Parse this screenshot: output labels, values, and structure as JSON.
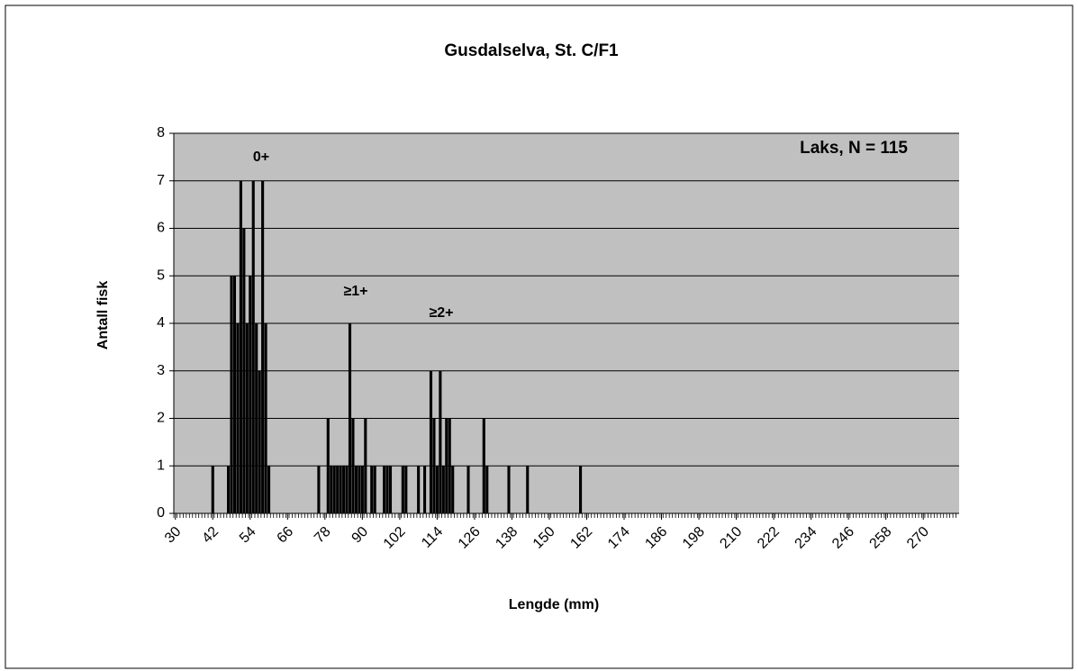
{
  "chart_data": {
    "type": "bar",
    "title": "Gusdalselva, St. C/F1",
    "x_label": "Lengde (mm)",
    "y_label": "Antall fisk",
    "annotations": [
      "0+",
      "≥1+",
      "≥2+",
      "Laks, N = 115"
    ],
    "x": [
      42,
      47,
      48,
      49,
      50,
      51,
      52,
      53,
      54,
      55,
      56,
      57,
      58,
      59,
      60,
      76,
      79,
      80,
      81,
      82,
      83,
      84,
      85,
      86,
      87,
      88,
      89,
      90,
      91,
      93,
      94,
      97,
      98,
      99,
      103,
      104,
      108,
      110,
      112,
      113,
      114,
      115,
      116,
      117,
      118,
      119,
      124,
      129,
      130,
      137,
      143,
      160
    ],
    "values": [
      1,
      1,
      5,
      5,
      4,
      7,
      6,
      4,
      5,
      7,
      4,
      3,
      7,
      4,
      1,
      1,
      2,
      1,
      1,
      1,
      1,
      1,
      1,
      4,
      2,
      1,
      1,
      1,
      2,
      1,
      1,
      1,
      1,
      1,
      1,
      1,
      1,
      1,
      3,
      2,
      1,
      3,
      1,
      2,
      2,
      1,
      1,
      2,
      1,
      1,
      1,
      1
    ],
    "color": "#000000",
    "xlim": [
      29.5,
      281.5
    ],
    "xticks": [
      30,
      42,
      54,
      66,
      78,
      90,
      102,
      114,
      126,
      138,
      150,
      162,
      174,
      186,
      198,
      210,
      222,
      234,
      246,
      258,
      270
    ],
    "ylim": [
      0,
      8
    ],
    "yticks": [
      0,
      1,
      2,
      3,
      4,
      5,
      6,
      7,
      8
    ],
    "grid": true
  }
}
